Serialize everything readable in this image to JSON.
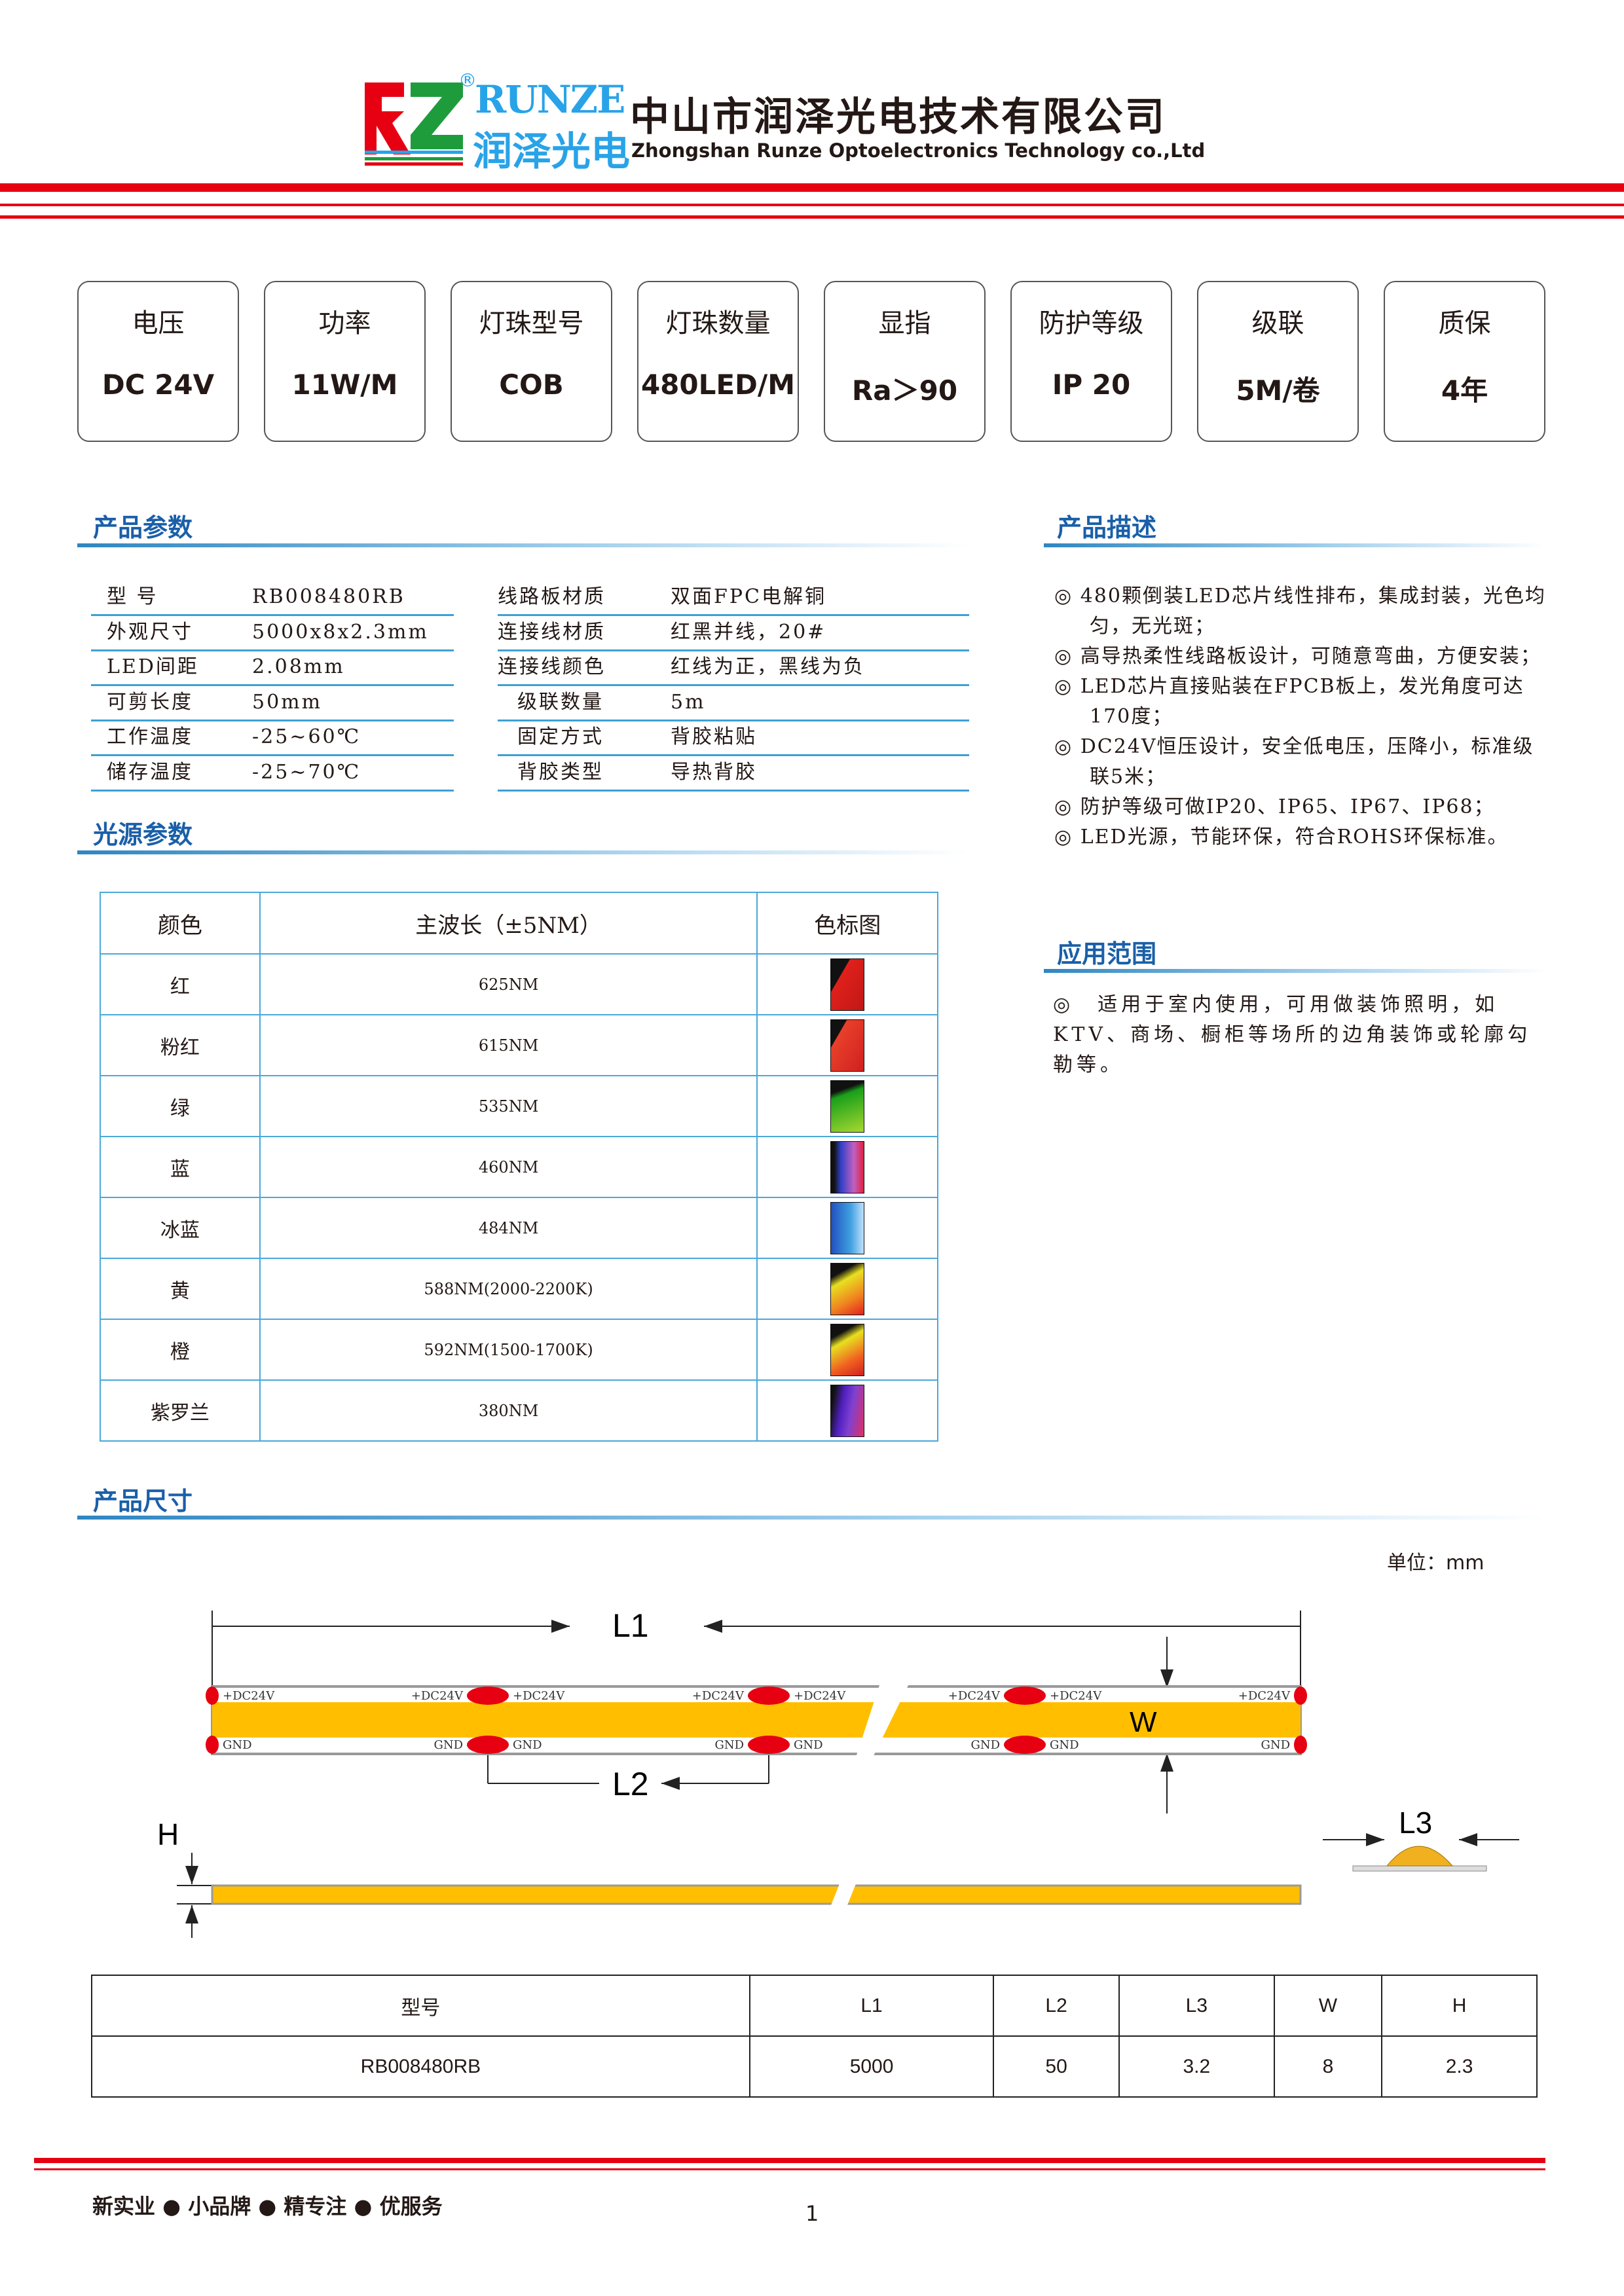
{
  "header": {
    "logo_letters": "RZ",
    "brand": "RUNZE",
    "brand_cn": "润泽光电",
    "registered": "®",
    "company_cn": "中山市润泽光电技术有限公司",
    "company_en": "Zhongshan Runze Optoelectronics Technology co.,Ltd"
  },
  "colors": {
    "red": "#e60012",
    "blue": "#1a5fa8",
    "logo_green": "#1e9c3c",
    "logo_blue": "#29a3e8",
    "strip_yellow": "#ffbf00",
    "line_blue": "#3ea0d4"
  },
  "specs": [
    {
      "label": "电压",
      "value": "DC 24V"
    },
    {
      "label": "功率",
      "value": "11W/M"
    },
    {
      "label": "灯珠型号",
      "value": "COB"
    },
    {
      "label": "灯珠数量",
      "value": "480LED/M"
    },
    {
      "label": "显指",
      "value": "Ra＞90"
    },
    {
      "label": "防护等级",
      "value": "IP 20"
    },
    {
      "label": "级联",
      "value": "5M/卷"
    },
    {
      "label": "质保",
      "value": "4年"
    }
  ],
  "params": {
    "title": "产品参数",
    "left": [
      {
        "k": "型 号",
        "v": "RB008480RB"
      },
      {
        "k": "外观尺寸",
        "v": "5000x8x2.3mm"
      },
      {
        "k": "LED间距",
        "v": "2.08mm"
      },
      {
        "k": "可剪长度",
        "v": "50mm"
      },
      {
        "k": "工作温度",
        "v": "-25~60℃"
      },
      {
        "k": "储存温度",
        "v": "-25~70℃"
      }
    ],
    "right": [
      {
        "k": "线路板材质",
        "v": "双面FPC电解铜"
      },
      {
        "k": "连接线材质",
        "v": "红黑并线，20#"
      },
      {
        "k": "连接线颜色",
        "v": "红线为正，黑线为负"
      },
      {
        "k": "级联数量",
        "v": "5m"
      },
      {
        "k": "固定方式",
        "v": "背胶粘贴"
      },
      {
        "k": "背胶类型",
        "v": "导热背胶"
      }
    ]
  },
  "description": {
    "title": "产品描述",
    "items": [
      "◎ 480颗倒装LED芯片线性排布，集成封装，光色均匀，无光斑；",
      "◎ 高导热柔性线路板设计，可随意弯曲，方便安装；",
      "◎ LED芯片直接贴装在FPCB板上，发光角度可达170度；",
      "◎ DC24V恒压设计，安全低电压，压降小，标准级联5米；",
      "◎ 防护等级可做IP20、IP65、IP67、IP68；",
      "◎ LED光源，节能环保，符合ROHS环保标准。"
    ]
  },
  "application": {
    "title": "应用范围",
    "text": "◎　适用于室内使用，可用做装饰照明，如KTV、商场、橱柜等场所的边角装饰或轮廓勾勒等。"
  },
  "light": {
    "title": "光源参数",
    "headers": [
      "颜色",
      "主波长（±5NM）",
      "色标图"
    ],
    "rows": [
      {
        "color": "红",
        "wl": "625NM",
        "sw": "linear-gradient(120deg,#111 30%,#e0201a 31%,#c01818)"
      },
      {
        "color": "粉红",
        "wl": "615NM",
        "sw": "linear-gradient(120deg,#111 25%,#e8402a 26%,#d02020)"
      },
      {
        "color": "绿",
        "wl": "535NM",
        "sw": "linear-gradient(160deg,#111 20%,#1aa01a 30%,#a8d830)"
      },
      {
        "color": "蓝",
        "wl": "460NM",
        "sw": "linear-gradient(90deg,#111 10%,#3040c8 30%,#c060c0 70%,#e02040)"
      },
      {
        "color": "冰蓝",
        "wl": "484NM",
        "sw": "linear-gradient(90deg,#2050c0,#40a0e0 60%,#c0e0ff)"
      },
      {
        "color": "黄",
        "wl": "588NM(2000-2200K)",
        "sw": "linear-gradient(150deg,#111 20%,#e8e020 35%,#f08020 70%,#e02020)"
      },
      {
        "color": "橙",
        "wl": "592NM(1500-1700K)",
        "sw": "linear-gradient(150deg,#111 20%,#e8e020 35%,#f06020 70%,#d02020)"
      },
      {
        "color": "紫罗兰",
        "wl": "380NM",
        "sw": "linear-gradient(100deg,#111 10%,#5020c0 35%,#8040d0 60%,#e03060)"
      }
    ]
  },
  "dimensions": {
    "title": "产品尺寸",
    "unit": "单位：mm",
    "labels": {
      "L1": "L1",
      "L2": "L2",
      "L3": "L3",
      "W": "W",
      "H": "H",
      "pos": "+DC24V",
      "gnd": "GND"
    },
    "table": {
      "headers": [
        "型号",
        "L1",
        "L2",
        "L3",
        "W",
        "H"
      ],
      "row": [
        "RB008480RB",
        "5000",
        "50",
        "3.2",
        "8",
        "2.3"
      ]
    }
  },
  "footer": {
    "slogan": "新实业 ● 小品牌 ● 精专注 ● 优服务",
    "page": "1"
  }
}
